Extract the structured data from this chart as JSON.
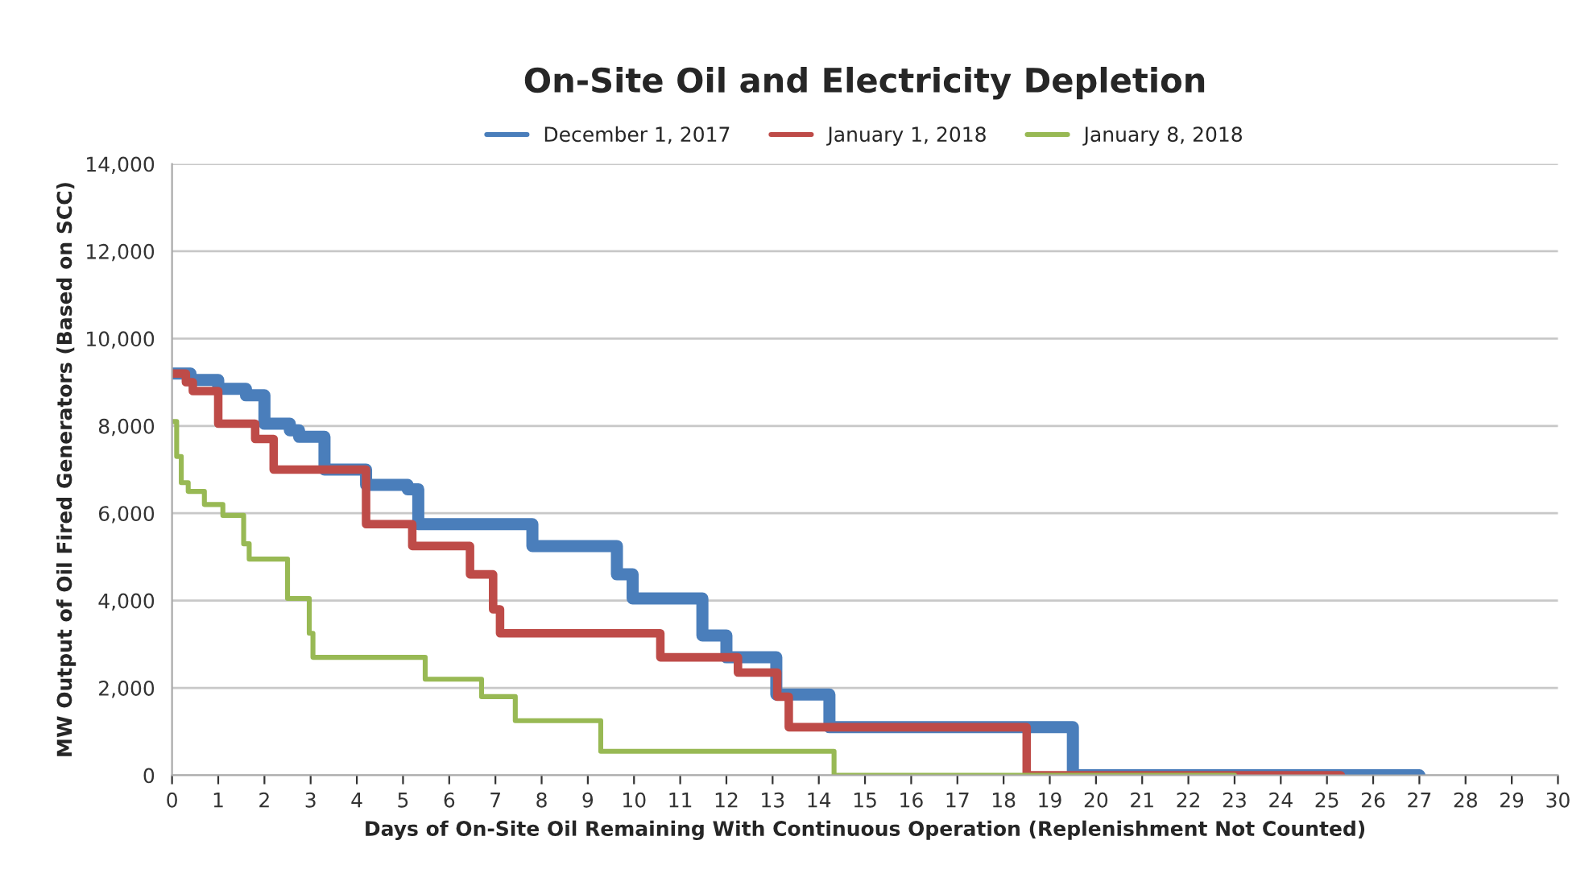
{
  "chart_data": {
    "type": "step",
    "title": "On-Site Oil and Electricity Depletion",
    "xlabel": "Days of On-Site Oil Remaining With Continuous Operation (Replenishment Not Counted)",
    "ylabel": "MW Output of Oil Fired Generators (Based on SCC)",
    "series": [
      {
        "name": "December 1, 2017",
        "color": "#4a7ebb",
        "x": [
          0,
          0.4,
          1.0,
          1.6,
          2.0,
          2.55,
          2.75,
          3.3,
          4.2,
          5.1,
          5.33,
          7.8,
          9.63,
          9.97,
          11.48,
          12.0,
          13.08,
          14.23,
          19.5,
          27
        ],
        "values": [
          9200,
          9050,
          8850,
          8700,
          8050,
          7900,
          7750,
          7000,
          6650,
          6550,
          5750,
          5250,
          4600,
          4050,
          3200,
          2700,
          1850,
          1100,
          0,
          0
        ]
      },
      {
        "name": "January 1, 2018",
        "color": "#be4b48",
        "x": [
          0,
          0.3,
          0.45,
          1.0,
          1.8,
          2.2,
          4.2,
          5.2,
          6.45,
          6.95,
          7.1,
          10.57,
          12.25,
          13.1,
          13.35,
          18.5,
          25.3
        ],
        "values": [
          9200,
          9000,
          8800,
          8050,
          7700,
          7000,
          5750,
          5250,
          4600,
          3800,
          3250,
          2700,
          2350,
          1800,
          1100,
          0,
          0
        ]
      },
      {
        "name": "January 8, 2018",
        "color": "#98b954",
        "x": [
          0,
          0.1,
          0.2,
          0.35,
          0.7,
          1.1,
          1.55,
          1.67,
          2.5,
          2.97,
          3.05,
          5.48,
          6.7,
          7.43,
          9.28,
          14.33,
          23
        ],
        "values": [
          8100,
          7300,
          6700,
          6500,
          6200,
          5950,
          5300,
          4950,
          4050,
          3250,
          2700,
          2200,
          1800,
          1250,
          550,
          0,
          0
        ]
      }
    ],
    "xlim": [
      0,
      30
    ],
    "xticks": [
      0,
      1,
      2,
      3,
      4,
      5,
      6,
      7,
      8,
      9,
      10,
      11,
      12,
      13,
      14,
      15,
      16,
      17,
      18,
      19,
      20,
      21,
      22,
      23,
      24,
      25,
      26,
      27,
      28,
      29,
      30
    ],
    "ylim": [
      0,
      14000
    ],
    "yticks": [
      {
        "value": 0,
        "label": "0"
      },
      {
        "value": 2000,
        "label": "2,000"
      },
      {
        "value": 4000,
        "label": "4,000"
      },
      {
        "value": 6000,
        "label": "6,000"
      },
      {
        "value": 8000,
        "label": "8,000"
      },
      {
        "value": 10000,
        "label": "10,000"
      },
      {
        "value": 12000,
        "label": "12,000"
      },
      {
        "value": 14000,
        "label": "14,000"
      }
    ],
    "grid": "y",
    "legend": "top",
    "marker": "none",
    "line_style": "solid"
  }
}
